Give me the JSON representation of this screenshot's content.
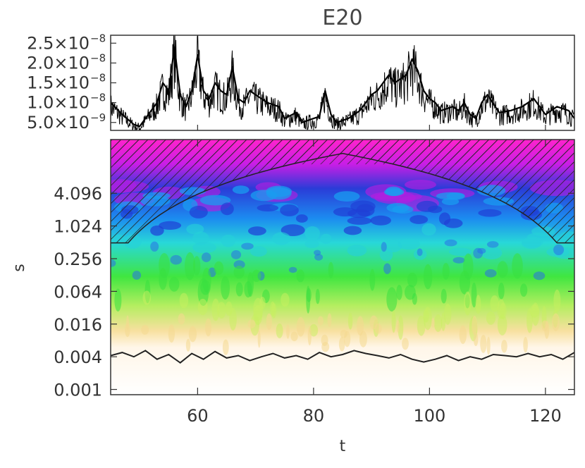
{
  "chart_data": [
    {
      "type": "line",
      "title": "E20",
      "xlim": [
        45,
        125
      ],
      "ylim": [
        3e-09,
        2.7e-08
      ],
      "y_ticks": [
        {
          "value": 2.5e-08,
          "mantissa": "2.5",
          "exponent": "−8"
        },
        {
          "value": 2e-08,
          "mantissa": "2.0",
          "exponent": "−8"
        },
        {
          "value": 1.5e-08,
          "mantissa": "1.5",
          "exponent": "−8"
        },
        {
          "value": 1e-08,
          "mantissa": "1.0",
          "exponent": "−8"
        },
        {
          "value": 5e-09,
          "mantissa": "5.0",
          "exponent": "−9"
        }
      ],
      "series": [
        {
          "color": "#000000",
          "x": [
            45,
            47,
            49,
            50,
            51,
            53,
            54,
            55,
            56,
            57,
            58,
            59,
            60,
            61,
            62,
            63,
            64,
            65,
            66,
            67,
            68,
            69,
            70,
            72,
            74,
            75,
            77,
            78,
            80,
            81,
            82,
            83,
            84,
            86,
            88,
            90,
            91,
            92,
            93,
            94,
            95,
            96,
            97,
            98,
            99,
            100,
            101,
            102,
            104,
            105,
            106,
            107,
            108,
            109,
            110,
            112,
            114,
            116,
            118,
            120,
            122,
            124,
            125
          ],
          "y": [
            1e-08,
            7e-09,
            4.5e-09,
            4e-09,
            6e-09,
            1e-08,
            1.5e-08,
            1.3e-08,
            2.4e-08,
            1.2e-08,
            9e-09,
            1.3e-08,
            2.2e-08,
            1.3e-08,
            1.1e-08,
            1.5e-08,
            1.3e-08,
            1.2e-08,
            1.9e-08,
            1.1e-08,
            1e-08,
            1.3e-08,
            1.2e-08,
            1e-08,
            9e-09,
            6e-09,
            7.5e-09,
            5e-09,
            6e-09,
            6.5e-09,
            1.3e-08,
            7e-09,
            5e-09,
            6e-09,
            8e-09,
            1.2e-08,
            1.3e-08,
            1.5e-08,
            1.7e-08,
            1.5e-08,
            1.6e-08,
            1.7e-08,
            2.1e-08,
            1.8e-08,
            1.3e-08,
            1.1e-08,
            1e-08,
            8e-09,
            9e-09,
            8e-09,
            1e-08,
            7e-09,
            6e-09,
            1e-08,
            1.2e-08,
            7.5e-09,
            8e-09,
            9e-09,
            1.1e-08,
            7e-09,
            9e-09,
            8e-09,
            6e-09
          ]
        }
      ]
    },
    {
      "type": "heatmap",
      "xlabel": "t",
      "ylabel": "s",
      "xlim": [
        45,
        125
      ],
      "y_scale": "log",
      "ylim": [
        0.0008,
        40
      ],
      "x_ticks": [
        60,
        80,
        100,
        120
      ],
      "y_ticks": [
        "4.096",
        "1.024",
        "0.256",
        "0.064",
        "0.016",
        "0.004",
        "0.001"
      ],
      "bands": [
        {
          "s": 40,
          "color": "#ff22cc"
        },
        {
          "s": 14,
          "color": "#c81ee6"
        },
        {
          "s": 5,
          "color": "#2a3cd8"
        },
        {
          "s": 1.4,
          "color": "#1c8cf0"
        },
        {
          "s": 0.5,
          "color": "#28d8d8"
        },
        {
          "s": 0.12,
          "color": "#40e640"
        },
        {
          "s": 0.035,
          "color": "#b4ee60"
        },
        {
          "s": 0.012,
          "color": "#f8e0a0"
        },
        {
          "s": 0.006,
          "color": "#fff6e8"
        },
        {
          "s": 0.0008,
          "color": "#ffffff"
        }
      ],
      "cone_of_influence": {
        "hatch_color": "#222222"
      },
      "overlay_line": {
        "color": "#222222",
        "x": [
          45,
          47,
          49,
          51,
          53,
          55,
          57,
          59,
          61,
          63,
          65,
          67,
          69,
          71,
          73,
          75,
          77,
          79,
          81,
          83,
          85,
          87,
          89,
          91,
          93,
          95,
          97,
          99,
          101,
          103,
          105,
          107,
          109,
          111,
          113,
          115,
          117,
          119,
          121,
          123,
          125
        ],
        "y": [
          0.0042,
          0.0048,
          0.004,
          0.0052,
          0.0036,
          0.0044,
          0.0031,
          0.0046,
          0.0036,
          0.005,
          0.0038,
          0.0042,
          0.0034,
          0.004,
          0.0046,
          0.0038,
          0.0042,
          0.0036,
          0.0048,
          0.004,
          0.0044,
          0.0052,
          0.0046,
          0.0042,
          0.0038,
          0.0044,
          0.0036,
          0.0032,
          0.0036,
          0.0042,
          0.0034,
          0.004,
          0.0036,
          0.0044,
          0.0042,
          0.004,
          0.0046,
          0.004,
          0.0044,
          0.0036,
          0.0048
        ]
      }
    }
  ]
}
